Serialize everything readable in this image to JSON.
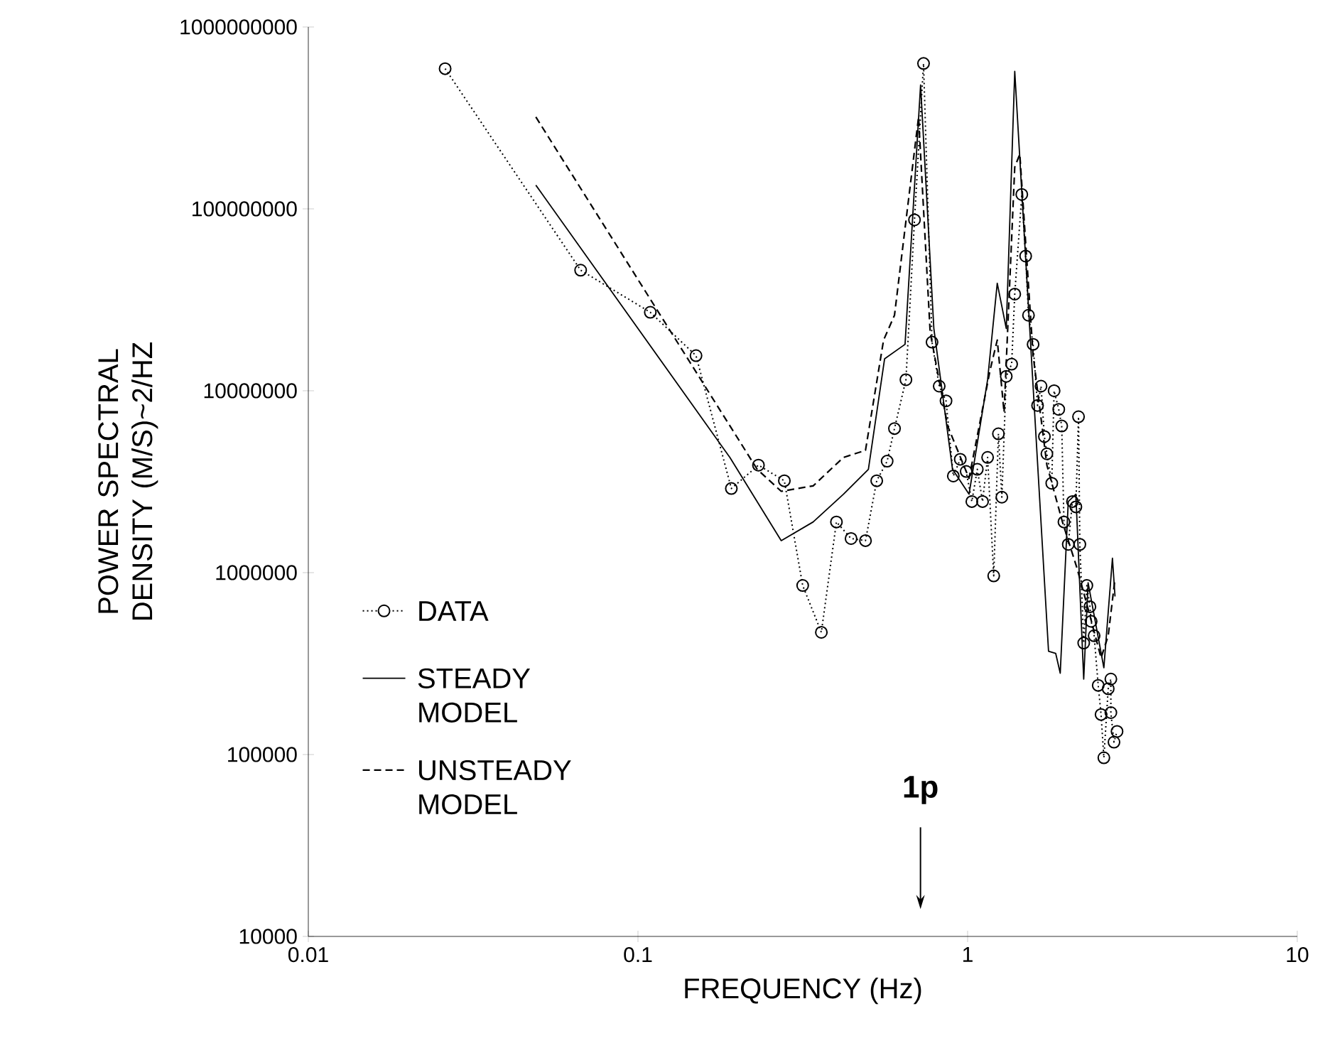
{
  "chart_data": {
    "type": "line",
    "xlabel": "FREQUENCY (Hz)",
    "ylabel": "POWER SPECTRAL DENSITY (M/S)~2/HZ",
    "log": "xy",
    "xlim": [
      0.01,
      10
    ],
    "ylim": [
      10000,
      1000000000
    ],
    "xticks": [
      0.01,
      0.1,
      1,
      10
    ],
    "yticks": [
      10000,
      100000,
      1000000,
      10000000,
      100000000,
      1000000000
    ],
    "legend": "bottom left",
    "grid": false,
    "annotations": [
      "1p"
    ],
    "series": [
      {
        "name": "DATA",
        "color": "#000000",
        "marker": "circle",
        "line_style": "dotted",
        "x": [
          0.026,
          0.067,
          0.109,
          0.15,
          0.192,
          0.232,
          0.278,
          0.316,
          0.36,
          0.4,
          0.443,
          0.49,
          0.53,
          0.57,
          0.6,
          0.65,
          0.69,
          0.735,
          0.78,
          0.82,
          0.86,
          0.905,
          0.95,
          0.99,
          1.03,
          1.07,
          1.11,
          1.15,
          1.2,
          1.24,
          1.27,
          1.31,
          1.36,
          1.39,
          1.46,
          1.5,
          1.53,
          1.58,
          1.63,
          1.67,
          1.71,
          1.74,
          1.8,
          1.83,
          1.89,
          1.93,
          1.96,
          2.02,
          2.08,
          2.13,
          2.17,
          2.19,
          2.25,
          2.3,
          2.35,
          2.37,
          2.42,
          2.49,
          2.54,
          2.59,
          2.67,
          2.72,
          2.72,
          2.78,
          2.84
        ],
        "values": [
          590000000,
          46000000,
          27000000,
          15600000,
          2900000,
          3900000,
          3200000,
          850000,
          470000,
          1900000,
          1540000,
          1500000,
          3200000,
          4100000,
          6200000,
          11500000,
          87000000,
          630000000,
          18500000,
          10600000,
          8800000,
          3400000,
          4200000,
          3600000,
          2460000,
          3700000,
          2460000,
          4300000,
          960000,
          5800000,
          2600000,
          12000000,
          14000000,
          34000000,
          120000000,
          55000000,
          26000000,
          18000000,
          8300000,
          10600000,
          5600000,
          4500000,
          3100000,
          10000000,
          7900000,
          6400000,
          1900000,
          1430000,
          2460000,
          2300000,
          7200000,
          1430000,
          410000,
          850000,
          650000,
          540000,
          450000,
          240000,
          166000,
          96000,
          230000,
          260000,
          170000,
          117000,
          134000
        ]
      },
      {
        "name": "STEADY MODEL",
        "color": "#000000",
        "marker": "none",
        "line_style": "solid",
        "x": [
          0.049,
          0.19,
          0.272,
          0.34,
          0.42,
          0.5,
          0.56,
          0.646,
          0.72,
          0.79,
          0.9,
          1.01,
          1.15,
          1.23,
          1.31,
          1.39,
          1.76,
          1.85,
          1.91,
          2.02,
          2.13,
          2.25,
          2.32,
          2.59,
          2.75,
          2.8
        ],
        "values": [
          135000000,
          4300000,
          1500000,
          1900000,
          2700000,
          3700000,
          15000000,
          18000000,
          480000000,
          22000000,
          3700000,
          2700000,
          11500000,
          39000000,
          22000000,
          570000000,
          370000,
          360000,
          280000,
          2460000,
          2700000,
          260000,
          880000,
          300000,
          1200000,
          740000
        ]
      },
      {
        "name": "UNSTEADY MODEL",
        "color": "#000000",
        "marker": "none",
        "line_style": "dashed",
        "x": [
          0.049,
          0.23,
          0.272,
          0.34,
          0.42,
          0.49,
          0.556,
          0.6,
          0.71,
          0.77,
          0.87,
          1.01,
          1.17,
          1.23,
          1.29,
          1.39,
          1.44,
          1.58,
          1.74,
          1.94,
          2.15,
          2.35,
          2.54,
          2.67,
          2.8
        ],
        "values": [
          320000000,
          3700000,
          2800000,
          3000000,
          4300000,
          4700000,
          19000000,
          26000000,
          320000000,
          21000000,
          6400000,
          3300000,
          13000000,
          19000000,
          7600000,
          170000000,
          200000000,
          15700000,
          3900000,
          1900000,
          1050000,
          580000,
          340000,
          450000,
          930000
        ]
      }
    ]
  }
}
